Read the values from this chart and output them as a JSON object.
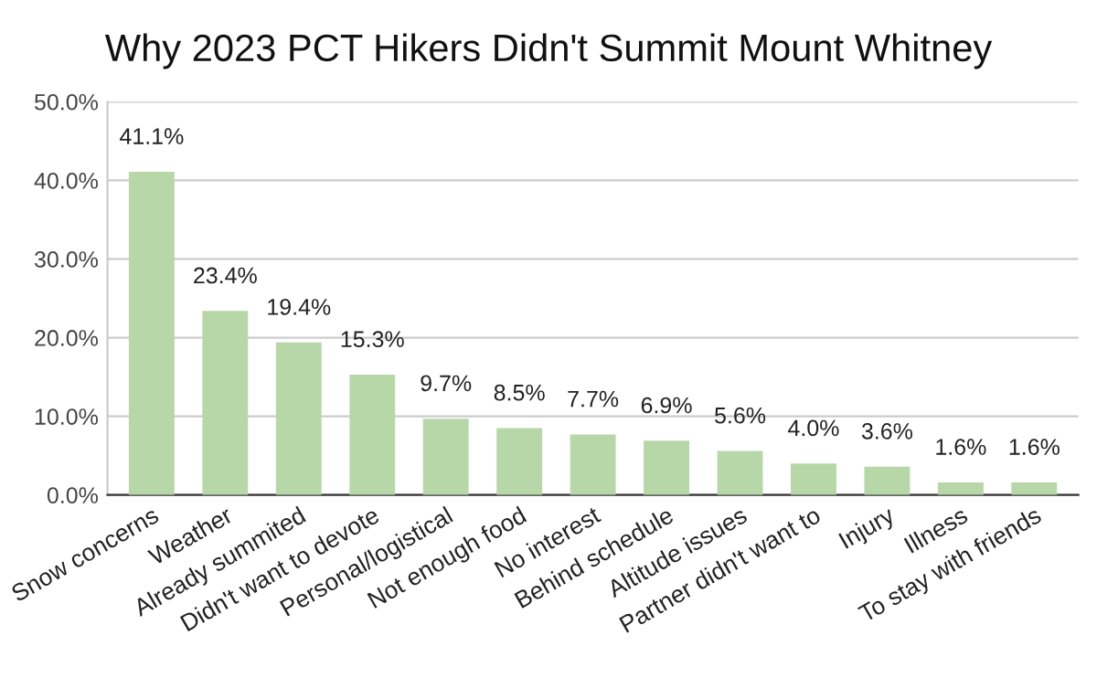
{
  "chart_data": {
    "type": "bar",
    "title": "Why 2023 PCT Hikers Didn't Summit Mount Whitney",
    "categories": [
      "Snow concerns",
      "Weather",
      "Already summited",
      "Didn't want to devote",
      "Personal/logistical",
      "Not enough food",
      "No interest",
      "Behind schedule",
      "Altitude issues",
      "Partner didn't want to",
      "Injury",
      "Illness",
      "To stay with friends"
    ],
    "values": [
      41.1,
      23.4,
      19.4,
      15.3,
      9.7,
      8.5,
      7.7,
      6.9,
      5.6,
      4.0,
      3.6,
      1.6,
      1.6
    ],
    "value_labels": [
      "41.1%",
      "23.4%",
      "19.4%",
      "15.3%",
      "9.7%",
      "8.5%",
      "7.7%",
      "6.9%",
      "5.6%",
      "4.0%",
      "3.6%",
      "1.6%",
      "1.6%"
    ],
    "color": "#b7d7a8",
    "ylim": [
      0,
      50
    ],
    "yticks": [
      {
        "value": 0,
        "label": "0.0%"
      },
      {
        "value": 10,
        "label": "10.0%"
      },
      {
        "value": 20,
        "label": "20.0%"
      },
      {
        "value": 30,
        "label": "30.0%"
      },
      {
        "value": 40,
        "label": "40.0%"
      },
      {
        "value": 50,
        "label": "50.0%"
      }
    ],
    "grid": "y",
    "legend": false
  }
}
